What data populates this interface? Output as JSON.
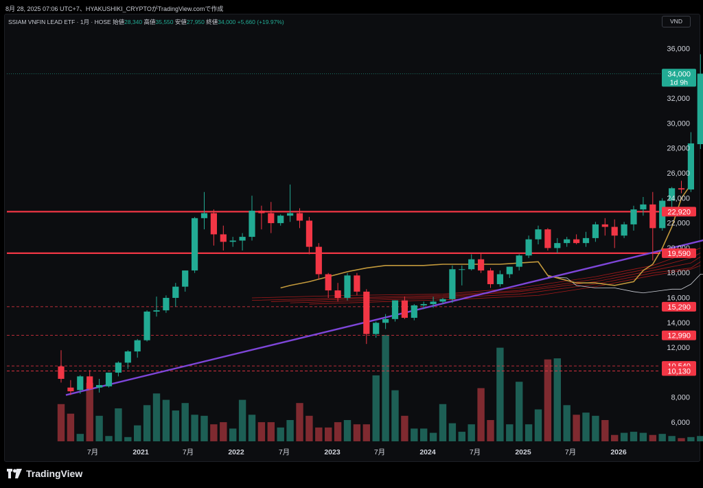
{
  "header": {
    "meta": "8月 28, 2025 07:06 UTC+7、HYAKUSHIKI_CRYPTOがTradingView.comで作成"
  },
  "legend": {
    "symbol": "SSIAM VNFIN LEAD ETF · 1月 · HOSE",
    "open_label": "始値",
    "open": "28,340",
    "high_label": "高値",
    "high": "35,550",
    "low_label": "安値",
    "low": "27,950",
    "close_label": "終値",
    "close": "34,000",
    "change": "+5,660 (+19.97%)"
  },
  "currency": "VND",
  "footer": {
    "brand": "TradingView"
  },
  "colors": {
    "up": "#22ab94",
    "down": "#f23645",
    "vol_up": "#1d5f55",
    "vol_down": "#7f2a30",
    "resistance": "#f23645",
    "trendline": "#7e46d9",
    "ema": "#c49a3c",
    "ribbon": "#b71c1c",
    "lagging": "#d1d4dc"
  },
  "chart_data": {
    "type": "candlestick",
    "interval": "1M",
    "y_axis": {
      "ticks": [
        6000,
        8000,
        10000,
        12000,
        14000,
        16000,
        18000,
        20000,
        22000,
        24000,
        26000,
        28000,
        30000,
        32000,
        34000,
        36000
      ],
      "tick_labels": [
        "6,000",
        "8,000",
        "10,000",
        "12,000",
        "14,000",
        "16,000",
        "18,000",
        "20,000",
        "22,000",
        "24,000",
        "26,000",
        "28,000",
        "30,000",
        "32,000",
        "34,000",
        "36,000"
      ]
    },
    "x_axis": {
      "tick_labels": [
        "7月",
        "2021",
        "7月",
        "2022",
        "7月",
        "2023",
        "7月",
        "2024",
        "7月",
        "2025",
        "7月",
        "2026"
      ]
    },
    "last_price": {
      "value": 34000,
      "label": "34,000",
      "countdown": "1d 9h"
    },
    "levels": [
      {
        "value": 22920,
        "label": "22,920",
        "style": "solid"
      },
      {
        "value": 19590,
        "label": "19,590",
        "style": "solid"
      },
      {
        "value": 15290,
        "label": "15,290",
        "style": "dashed"
      },
      {
        "value": 12990,
        "label": "12,990",
        "style": "dashed"
      },
      {
        "value": 10540,
        "label": "10,540",
        "style": "dashed"
      },
      {
        "value": 10130,
        "label": "10,130",
        "style": "dashed"
      }
    ],
    "candles": [
      {
        "o": 10500,
        "h": 11800,
        "l": 9200,
        "c": 9500,
        "v": 0.35
      },
      {
        "o": 8800,
        "h": 9400,
        "l": 8200,
        "c": 8500,
        "v": 0.26
      },
      {
        "o": 8600,
        "h": 9800,
        "l": 8300,
        "c": 9700,
        "v": 0.07
      },
      {
        "o": 9700,
        "h": 10200,
        "l": 8600,
        "c": 8700,
        "v": 0.55
      },
      {
        "o": 8800,
        "h": 9500,
        "l": 8400,
        "c": 9000,
        "v": 0.24
      },
      {
        "o": 8900,
        "h": 10000,
        "l": 8800,
        "c": 10000,
        "v": 0.05
      },
      {
        "o": 10000,
        "h": 10900,
        "l": 9700,
        "c": 10800,
        "v": 0.31
      },
      {
        "o": 10800,
        "h": 11800,
        "l": 10300,
        "c": 11700,
        "v": 0.04
      },
      {
        "o": 11700,
        "h": 12700,
        "l": 11200,
        "c": 12600,
        "v": 0.15
      },
      {
        "o": 12600,
        "h": 15000,
        "l": 12500,
        "c": 14900,
        "v": 0.34
      },
      {
        "o": 14900,
        "h": 16100,
        "l": 14500,
        "c": 15000,
        "v": 0.45
      },
      {
        "o": 15000,
        "h": 16200,
        "l": 14800,
        "c": 16000,
        "v": 0.39
      },
      {
        "o": 16000,
        "h": 17200,
        "l": 15300,
        "c": 16900,
        "v": 0.29
      },
      {
        "o": 16900,
        "h": 18200,
        "l": 16500,
        "c": 18200,
        "v": 0.36
      },
      {
        "o": 18200,
        "h": 22500,
        "l": 18000,
        "c": 22400,
        "v": 0.25
      },
      {
        "o": 22400,
        "h": 24500,
        "l": 21500,
        "c": 22800,
        "v": 0.24
      },
      {
        "o": 22800,
        "h": 23100,
        "l": 20200,
        "c": 21100,
        "v": 0.16
      },
      {
        "o": 21100,
        "h": 21800,
        "l": 19800,
        "c": 20500,
        "v": 0.18
      },
      {
        "o": 20500,
        "h": 20900,
        "l": 20100,
        "c": 20600,
        "v": 0.12
      },
      {
        "o": 20600,
        "h": 21200,
        "l": 19800,
        "c": 20900,
        "v": 0.39
      },
      {
        "o": 20900,
        "h": 24200,
        "l": 20600,
        "c": 23000,
        "v": 0.25
      },
      {
        "o": 23000,
        "h": 23400,
        "l": 21500,
        "c": 22800,
        "v": 0.18
      },
      {
        "o": 22800,
        "h": 23700,
        "l": 21200,
        "c": 22000,
        "v": 0.18
      },
      {
        "o": 22000,
        "h": 22700,
        "l": 21800,
        "c": 22600,
        "v": 0.13
      },
      {
        "o": 22600,
        "h": 25100,
        "l": 22100,
        "c": 22800,
        "v": 0.2
      },
      {
        "o": 22800,
        "h": 23200,
        "l": 21600,
        "c": 22200,
        "v": 0.36
      },
      {
        "o": 22200,
        "h": 22500,
        "l": 19500,
        "c": 20100,
        "v": 0.24
      },
      {
        "o": 20100,
        "h": 20400,
        "l": 17500,
        "c": 17900,
        "v": 0.13
      },
      {
        "o": 17900,
        "h": 18000,
        "l": 16000,
        "c": 16600,
        "v": 0.13
      },
      {
        "o": 16600,
        "h": 17200,
        "l": 15700,
        "c": 16000,
        "v": 0.18
      },
      {
        "o": 16000,
        "h": 18000,
        "l": 15800,
        "c": 17800,
        "v": 0.2
      },
      {
        "o": 17800,
        "h": 18000,
        "l": 16200,
        "c": 16500,
        "v": 0.16
      },
      {
        "o": 16500,
        "h": 16700,
        "l": 12300,
        "c": 13100,
        "v": 0.16
      },
      {
        "o": 13100,
        "h": 14100,
        "l": 12800,
        "c": 14000,
        "v": 0.62
      },
      {
        "o": 14000,
        "h": 14700,
        "l": 13500,
        "c": 14300,
        "v": 1.0
      },
      {
        "o": 14300,
        "h": 15800,
        "l": 14100,
        "c": 15800,
        "v": 0.48
      },
      {
        "o": 15800,
        "h": 16100,
        "l": 14300,
        "c": 14400,
        "v": 0.24
      },
      {
        "o": 14400,
        "h": 15500,
        "l": 14200,
        "c": 15400,
        "v": 0.12
      },
      {
        "o": 15400,
        "h": 15700,
        "l": 15100,
        "c": 15500,
        "v": 0.12
      },
      {
        "o": 15500,
        "h": 16100,
        "l": 15200,
        "c": 15700,
        "v": 0.08
      },
      {
        "o": 15700,
        "h": 16000,
        "l": 15500,
        "c": 15900,
        "v": 0.35
      },
      {
        "o": 15900,
        "h": 18600,
        "l": 15600,
        "c": 18300,
        "v": 0.17
      },
      {
        "o": 18300,
        "h": 18600,
        "l": 17000,
        "c": 18300,
        "v": 0.09
      },
      {
        "o": 18300,
        "h": 19500,
        "l": 18200,
        "c": 19100,
        "v": 0.16
      },
      {
        "o": 19100,
        "h": 19600,
        "l": 18000,
        "c": 18200,
        "v": 0.5
      },
      {
        "o": 18200,
        "h": 18400,
        "l": 16800,
        "c": 17100,
        "v": 0.2
      },
      {
        "o": 17100,
        "h": 18200,
        "l": 16900,
        "c": 17900,
        "v": 0.88
      },
      {
        "o": 17900,
        "h": 18500,
        "l": 17600,
        "c": 18500,
        "v": 0.16
      },
      {
        "o": 18500,
        "h": 19500,
        "l": 18200,
        "c": 19400,
        "v": 0.56
      },
      {
        "o": 19400,
        "h": 21000,
        "l": 19200,
        "c": 20700,
        "v": 0.16
      },
      {
        "o": 20700,
        "h": 21800,
        "l": 20300,
        "c": 21500,
        "v": 0.3
      },
      {
        "o": 21500,
        "h": 21600,
        "l": 19800,
        "c": 20000,
        "v": 0.77
      },
      {
        "o": 20000,
        "h": 20800,
        "l": 19600,
        "c": 20400,
        "v": 0.78
      },
      {
        "o": 20400,
        "h": 20900,
        "l": 20100,
        "c": 20700,
        "v": 0.34
      },
      {
        "o": 20700,
        "h": 21100,
        "l": 20300,
        "c": 20400,
        "v": 0.25
      },
      {
        "o": 20400,
        "h": 21300,
        "l": 20100,
        "c": 20800,
        "v": 0.27
      },
      {
        "o": 20800,
        "h": 22100,
        "l": 20500,
        "c": 21900,
        "v": 0.24
      },
      {
        "o": 21900,
        "h": 22400,
        "l": 21000,
        "c": 21700,
        "v": 0.2
      },
      {
        "o": 21700,
        "h": 22300,
        "l": 20000,
        "c": 21000,
        "v": 0.06
      },
      {
        "o": 21000,
        "h": 22100,
        "l": 20800,
        "c": 21900,
        "v": 0.08
      },
      {
        "o": 21900,
        "h": 23400,
        "l": 21400,
        "c": 23100,
        "v": 0.09
      },
      {
        "o": 23100,
        "h": 24100,
        "l": 22600,
        "c": 23500,
        "v": 0.08
      },
      {
        "o": 23500,
        "h": 24500,
        "l": 19000,
        "c": 21600,
        "v": 0.06
      },
      {
        "o": 21600,
        "h": 24000,
        "l": 21400,
        "c": 23800,
        "v": 0.07
      },
      {
        "o": 23800,
        "h": 24900,
        "l": 23300,
        "c": 24800,
        "v": 0.05
      },
      {
        "o": 24800,
        "h": 25400,
        "l": 24400,
        "c": 24700,
        "v": 0.03
      },
      {
        "o": 24700,
        "h": 29300,
        "l": 24500,
        "c": 28400,
        "v": 0.04
      },
      {
        "o": 28340,
        "h": 35550,
        "l": 27950,
        "c": 34000,
        "v": 0.05
      }
    ],
    "trendline": [
      {
        "index": 0.5,
        "value": 8200
      },
      {
        "index": 72,
        "value": 21500
      }
    ],
    "ema_line": [
      [
        23,
        16800
      ],
      [
        24,
        17000
      ],
      [
        26,
        17300
      ],
      [
        28,
        17700
      ],
      [
        30,
        18100
      ],
      [
        32,
        18400
      ],
      [
        34,
        18600
      ],
      [
        36,
        18600
      ],
      [
        38,
        18600
      ],
      [
        40,
        18700
      ],
      [
        42,
        18700
      ],
      [
        44,
        18700
      ],
      [
        46,
        18700
      ],
      [
        48,
        18800
      ],
      [
        50,
        18900
      ],
      [
        51,
        17800
      ],
      [
        52,
        17600
      ],
      [
        54,
        17200
      ],
      [
        56,
        17200
      ],
      [
        58,
        17000
      ],
      [
        60,
        17300
      ],
      [
        61,
        18200
      ],
      [
        62,
        18700
      ],
      [
        63,
        20000
      ],
      [
        64,
        21700
      ],
      [
        65,
        24000
      ],
      [
        66,
        25100
      ]
    ],
    "lagging_line": [
      [
        51,
        17700
      ],
      [
        53,
        17600
      ],
      [
        54,
        17000
      ],
      [
        56,
        16800
      ],
      [
        58,
        16800
      ],
      [
        60,
        16500
      ],
      [
        61,
        16400
      ],
      [
        63,
        16600
      ],
      [
        64,
        16700
      ],
      [
        65,
        16700
      ],
      [
        66,
        17100
      ],
      [
        67,
        17900
      ],
      [
        69,
        17800
      ],
      [
        71,
        18100
      ],
      [
        73,
        18300
      ],
      [
        75,
        18400
      ],
      [
        76,
        18700
      ],
      [
        78,
        18700
      ],
      [
        80,
        18700
      ]
    ],
    "ribbon": [
      [
        [
          20,
          16000
        ],
        [
          30,
          16200
        ],
        [
          40,
          16300
        ],
        [
          48,
          16800
        ],
        [
          56,
          17700
        ],
        [
          62,
          18600
        ],
        [
          66,
          19700
        ],
        [
          67,
          20000
        ]
      ],
      [
        [
          20,
          15800
        ],
        [
          30,
          16000
        ],
        [
          40,
          16200
        ],
        [
          48,
          16600
        ],
        [
          56,
          17500
        ],
        [
          62,
          18400
        ],
        [
          66,
          19200
        ],
        [
          67,
          19600
        ]
      ],
      [
        [
          22,
          15700
        ],
        [
          30,
          15900
        ],
        [
          40,
          16100
        ],
        [
          48,
          16500
        ],
        [
          56,
          17300
        ],
        [
          62,
          18200
        ],
        [
          66,
          18800
        ],
        [
          67,
          19300
        ]
      ],
      [
        [
          24,
          15600
        ],
        [
          32,
          15800
        ],
        [
          40,
          16000
        ],
        [
          48,
          16300
        ],
        [
          56,
          17100
        ],
        [
          62,
          18000
        ],
        [
          66,
          18400
        ],
        [
          67,
          18900
        ]
      ],
      [
        [
          26,
          15500
        ],
        [
          34,
          15700
        ],
        [
          42,
          15900
        ],
        [
          50,
          16200
        ],
        [
          56,
          16900
        ],
        [
          62,
          17800
        ],
        [
          66,
          18300
        ],
        [
          67,
          18600
        ]
      ]
    ]
  }
}
